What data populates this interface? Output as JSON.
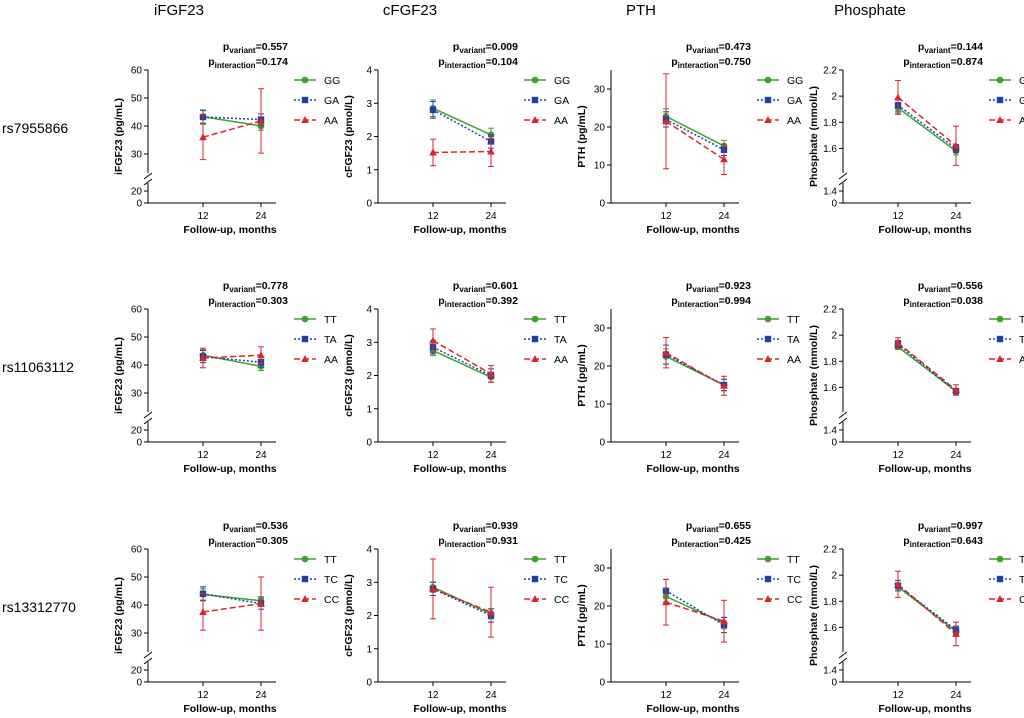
{
  "figure": {
    "columns": [
      "iFGF23",
      "cFGF23",
      "PTH",
      "Phosphate"
    ],
    "rows": [
      "rs7955866",
      "rs11063112",
      "rs13312770"
    ],
    "xlabel": "Follow-up, months",
    "p_labels": {
      "variant_prefix": "p",
      "variant_sub": "variant",
      "interaction_prefix": "p",
      "interaction_sub": "interaction"
    }
  },
  "colors": {
    "g1": "#3aa32a",
    "g2": "#1f3fa8",
    "g3": "#d9262b",
    "axis": "#000000"
  },
  "chart_data": [
    {
      "type": "line",
      "row": 0,
      "col": 0,
      "title": "iFGF23",
      "ylabel": "iFGF23 (pg/mL)",
      "xlabel": "Follow-up, months",
      "x": [
        12,
        24
      ],
      "ylim": [
        25,
        60
      ],
      "yticks": [
        30,
        40,
        50,
        60
      ],
      "axis_break": [
        0,
        20
      ],
      "p_variant": "=0.557",
      "p_interaction": "=0.174",
      "series": [
        {
          "name": "GG",
          "values": [
            43.3,
            40.0
          ],
          "err": [
            2.2,
            1.5
          ]
        },
        {
          "name": "GA",
          "values": [
            43.2,
            42.3
          ],
          "err": [
            2.5,
            2.0
          ]
        },
        {
          "name": "AA",
          "values": [
            36.0,
            41.8
          ],
          "err": [
            8.0,
            11.5
          ]
        }
      ]
    },
    {
      "type": "line",
      "row": 0,
      "col": 1,
      "title": "cFGF23",
      "ylabel": "cFGF23 (pmol/L)",
      "xlabel": "Follow-up, months",
      "x": [
        12,
        24
      ],
      "ylim": [
        0,
        4
      ],
      "yticks": [
        0,
        1,
        2,
        3,
        4
      ],
      "p_variant": "=0.009",
      "p_interaction": "=0.104",
      "series": [
        {
          "name": "GG",
          "values": [
            2.85,
            2.05
          ],
          "err": [
            0.25,
            0.2
          ]
        },
        {
          "name": "GA",
          "values": [
            2.8,
            1.85
          ],
          "err": [
            0.25,
            0.2
          ]
        },
        {
          "name": "AA",
          "values": [
            1.52,
            1.55
          ],
          "err": [
            0.4,
            0.45
          ]
        }
      ]
    },
    {
      "type": "line",
      "row": 0,
      "col": 2,
      "title": "PTH",
      "ylabel": "PTH (pg/mL)",
      "xlabel": "Follow-up, months",
      "x": [
        12,
        24
      ],
      "ylim": [
        0,
        35
      ],
      "yticks": [
        0,
        10,
        20,
        30
      ],
      "p_variant": "=0.473",
      "p_interaction": "=0.750",
      "series": [
        {
          "name": "GG",
          "values": [
            22.8,
            15.0
          ],
          "err": [
            2.0,
            1.5
          ]
        },
        {
          "name": "GA",
          "values": [
            22.0,
            14.0
          ],
          "err": [
            2.0,
            1.5
          ]
        },
        {
          "name": "AA",
          "values": [
            21.5,
            11.5
          ],
          "err": [
            12.5,
            4.0
          ]
        }
      ]
    },
    {
      "type": "line",
      "row": 0,
      "col": 3,
      "title": "Phosphate",
      "ylabel": "Phosphate (mmol/L)",
      "xlabel": "Follow-up, months",
      "x": [
        12,
        24
      ],
      "ylim": [
        1.45,
        2.2
      ],
      "yticks": [
        1.6,
        1.8,
        2.0,
        2.2
      ],
      "axis_break": [
        0,
        1.4
      ],
      "p_variant": "=0.144",
      "p_interaction": "=0.874",
      "series": [
        {
          "name": "GG",
          "values": [
            1.91,
            1.58
          ],
          "err": [
            0.04,
            0.03
          ]
        },
        {
          "name": "GA",
          "values": [
            1.93,
            1.6
          ],
          "err": [
            0.05,
            0.03
          ]
        },
        {
          "name": "AA",
          "values": [
            1.99,
            1.62
          ],
          "err": [
            0.13,
            0.15
          ]
        }
      ]
    },
    {
      "type": "line",
      "row": 1,
      "col": 0,
      "title": "iFGF23",
      "ylabel": "iFGF23 (pg/mL)",
      "xlabel": "Follow-up, months",
      "x": [
        12,
        24
      ],
      "ylim": [
        25,
        60
      ],
      "yticks": [
        30,
        40,
        50,
        60
      ],
      "axis_break": [
        0,
        20
      ],
      "p_variant": "=0.778",
      "p_interaction": "=0.303",
      "series": [
        {
          "name": "TT",
          "values": [
            43.5,
            39.5
          ],
          "err": [
            2.0,
            1.5
          ]
        },
        {
          "name": "TA",
          "values": [
            43.0,
            41.0
          ],
          "err": [
            2.2,
            1.8
          ]
        },
        {
          "name": "AA",
          "values": [
            42.5,
            43.5
          ],
          "err": [
            3.5,
            3.0
          ]
        }
      ]
    },
    {
      "type": "line",
      "row": 1,
      "col": 1,
      "title": "cFGF23",
      "ylabel": "cFGF23 (pmol/L)",
      "xlabel": "Follow-up, months",
      "x": [
        12,
        24
      ],
      "ylim": [
        0,
        4
      ],
      "yticks": [
        0,
        1,
        2,
        3,
        4
      ],
      "p_variant": "=0.601",
      "p_interaction": "=0.392",
      "series": [
        {
          "name": "TT",
          "values": [
            2.75,
            1.95
          ],
          "err": [
            0.15,
            0.15
          ]
        },
        {
          "name": "TA",
          "values": [
            2.85,
            2.0
          ],
          "err": [
            0.2,
            0.2
          ]
        },
        {
          "name": "AA",
          "values": [
            3.05,
            2.05
          ],
          "err": [
            0.35,
            0.25
          ]
        }
      ]
    },
    {
      "type": "line",
      "row": 1,
      "col": 2,
      "title": "PTH",
      "ylabel": "PTH (pg/mL)",
      "xlabel": "Follow-up, months",
      "x": [
        12,
        24
      ],
      "ylim": [
        0,
        35
      ],
      "yticks": [
        0,
        10,
        20,
        30
      ],
      "p_variant": "=0.923",
      "p_interaction": "=0.994",
      "series": [
        {
          "name": "TT",
          "values": [
            22.5,
            15.0
          ],
          "err": [
            2.0,
            1.5
          ]
        },
        {
          "name": "TA",
          "values": [
            23.0,
            15.0
          ],
          "err": [
            2.5,
            1.5
          ]
        },
        {
          "name": "AA",
          "values": [
            23.5,
            14.8
          ],
          "err": [
            4.0,
            2.5
          ]
        }
      ]
    },
    {
      "type": "line",
      "row": 1,
      "col": 3,
      "title": "Phosphate",
      "ylabel": "Phosphate (mmol/L)",
      "xlabel": "Follow-up, months",
      "x": [
        12,
        24
      ],
      "ylim": [
        1.45,
        2.2
      ],
      "yticks": [
        1.6,
        1.8,
        2.0,
        2.2
      ],
      "axis_break": [
        0,
        1.4
      ],
      "p_variant": "=0.556",
      "p_interaction": "=0.038",
      "series": [
        {
          "name": "TT",
          "values": [
            1.91,
            1.57
          ],
          "err": [
            0.02,
            0.02
          ]
        },
        {
          "name": "TA",
          "values": [
            1.93,
            1.57
          ],
          "err": [
            0.03,
            0.02
          ]
        },
        {
          "name": "AA",
          "values": [
            1.94,
            1.58
          ],
          "err": [
            0.04,
            0.04
          ]
        }
      ]
    },
    {
      "type": "line",
      "row": 2,
      "col": 0,
      "title": "iFGF23",
      "ylabel": "iFGF23 (pg/mL)",
      "xlabel": "Follow-up, months",
      "x": [
        12,
        24
      ],
      "ylim": [
        25,
        60
      ],
      "yticks": [
        30,
        40,
        50,
        60
      ],
      "axis_break": [
        0,
        20
      ],
      "p_variant": "=0.536",
      "p_interaction": "=0.305",
      "series": [
        {
          "name": "TT",
          "values": [
            43.8,
            41.5
          ],
          "err": [
            2.0,
            1.5
          ]
        },
        {
          "name": "TC",
          "values": [
            44.0,
            40.5
          ],
          "err": [
            2.5,
            2.0
          ]
        },
        {
          "name": "CC",
          "values": [
            37.5,
            40.5
          ],
          "err": [
            6.5,
            9.5
          ]
        }
      ]
    },
    {
      "type": "line",
      "row": 2,
      "col": 1,
      "title": "cFGF23",
      "ylabel": "cFGF23 (pmol/L)",
      "xlabel": "Follow-up, months",
      "x": [
        12,
        24
      ],
      "ylim": [
        0,
        4
      ],
      "yticks": [
        0,
        1,
        2,
        3,
        4
      ],
      "p_variant": "=0.939",
      "p_interaction": "=0.931",
      "series": [
        {
          "name": "TT",
          "values": [
            2.85,
            2.05
          ],
          "err": [
            0.15,
            0.15
          ]
        },
        {
          "name": "TC",
          "values": [
            2.8,
            2.0
          ],
          "err": [
            0.2,
            0.2
          ]
        },
        {
          "name": "CC",
          "values": [
            2.8,
            2.1
          ],
          "err": [
            0.9,
            0.75
          ]
        }
      ]
    },
    {
      "type": "line",
      "row": 2,
      "col": 2,
      "title": "PTH",
      "ylabel": "PTH (pg/mL)",
      "xlabel": "Follow-up, months",
      "x": [
        12,
        24
      ],
      "ylim": [
        0,
        35
      ],
      "yticks": [
        0,
        10,
        20,
        30
      ],
      "p_variant": "=0.655",
      "p_interaction": "=0.425",
      "series": [
        {
          "name": "TT",
          "values": [
            22.5,
            15.5
          ],
          "err": [
            2.0,
            1.5
          ]
        },
        {
          "name": "TC",
          "values": [
            24.0,
            15.0
          ],
          "err": [
            3.0,
            2.0
          ]
        },
        {
          "name": "CC",
          "values": [
            21.0,
            16.0
          ],
          "err": [
            6.0,
            5.5
          ]
        }
      ]
    },
    {
      "type": "line",
      "row": 2,
      "col": 3,
      "title": "Phosphate",
      "ylabel": "Phosphate (mmol/L)",
      "xlabel": "Follow-up, months",
      "x": [
        12,
        24
      ],
      "ylim": [
        1.45,
        2.2
      ],
      "yticks": [
        1.6,
        1.8,
        2.0,
        2.2
      ],
      "axis_break": [
        0,
        1.4
      ],
      "p_variant": "=0.997",
      "p_interaction": "=0.643",
      "series": [
        {
          "name": "TT",
          "values": [
            1.91,
            1.57
          ],
          "err": [
            0.03,
            0.03
          ]
        },
        {
          "name": "TC",
          "values": [
            1.92,
            1.58
          ],
          "err": [
            0.04,
            0.03
          ]
        },
        {
          "name": "CC",
          "values": [
            1.93,
            1.55
          ],
          "err": [
            0.1,
            0.09
          ]
        }
      ]
    }
  ]
}
